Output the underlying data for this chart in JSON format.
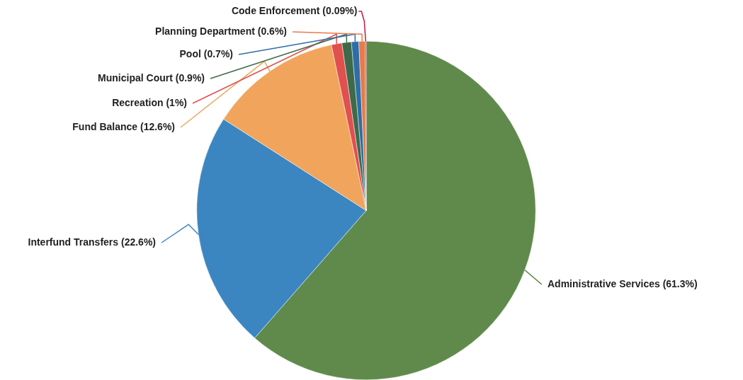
{
  "chart_data": {
    "type": "pie",
    "categories": [
      "Administrative Services (61.3%)",
      "Interfund Transfers (22.6%)",
      "Fund Balance (12.6%)",
      "Recreation (1%)",
      "Municipal Court (0.9%)",
      "Pool (0.7%)",
      "Planning Department (0.6%)",
      "Code Enforcement (0.09%)"
    ],
    "values": [
      61.3,
      22.6,
      12.6,
      1,
      0.9,
      0.7,
      0.6,
      0.09
    ],
    "colors": [
      "#608a4c",
      "#3b86c0",
      "#f0a45c",
      "#e0504e",
      "#3e6a4a",
      "#2e6ea6",
      "#e87a4c",
      "#c01a3c"
    ],
    "legend": false
  }
}
